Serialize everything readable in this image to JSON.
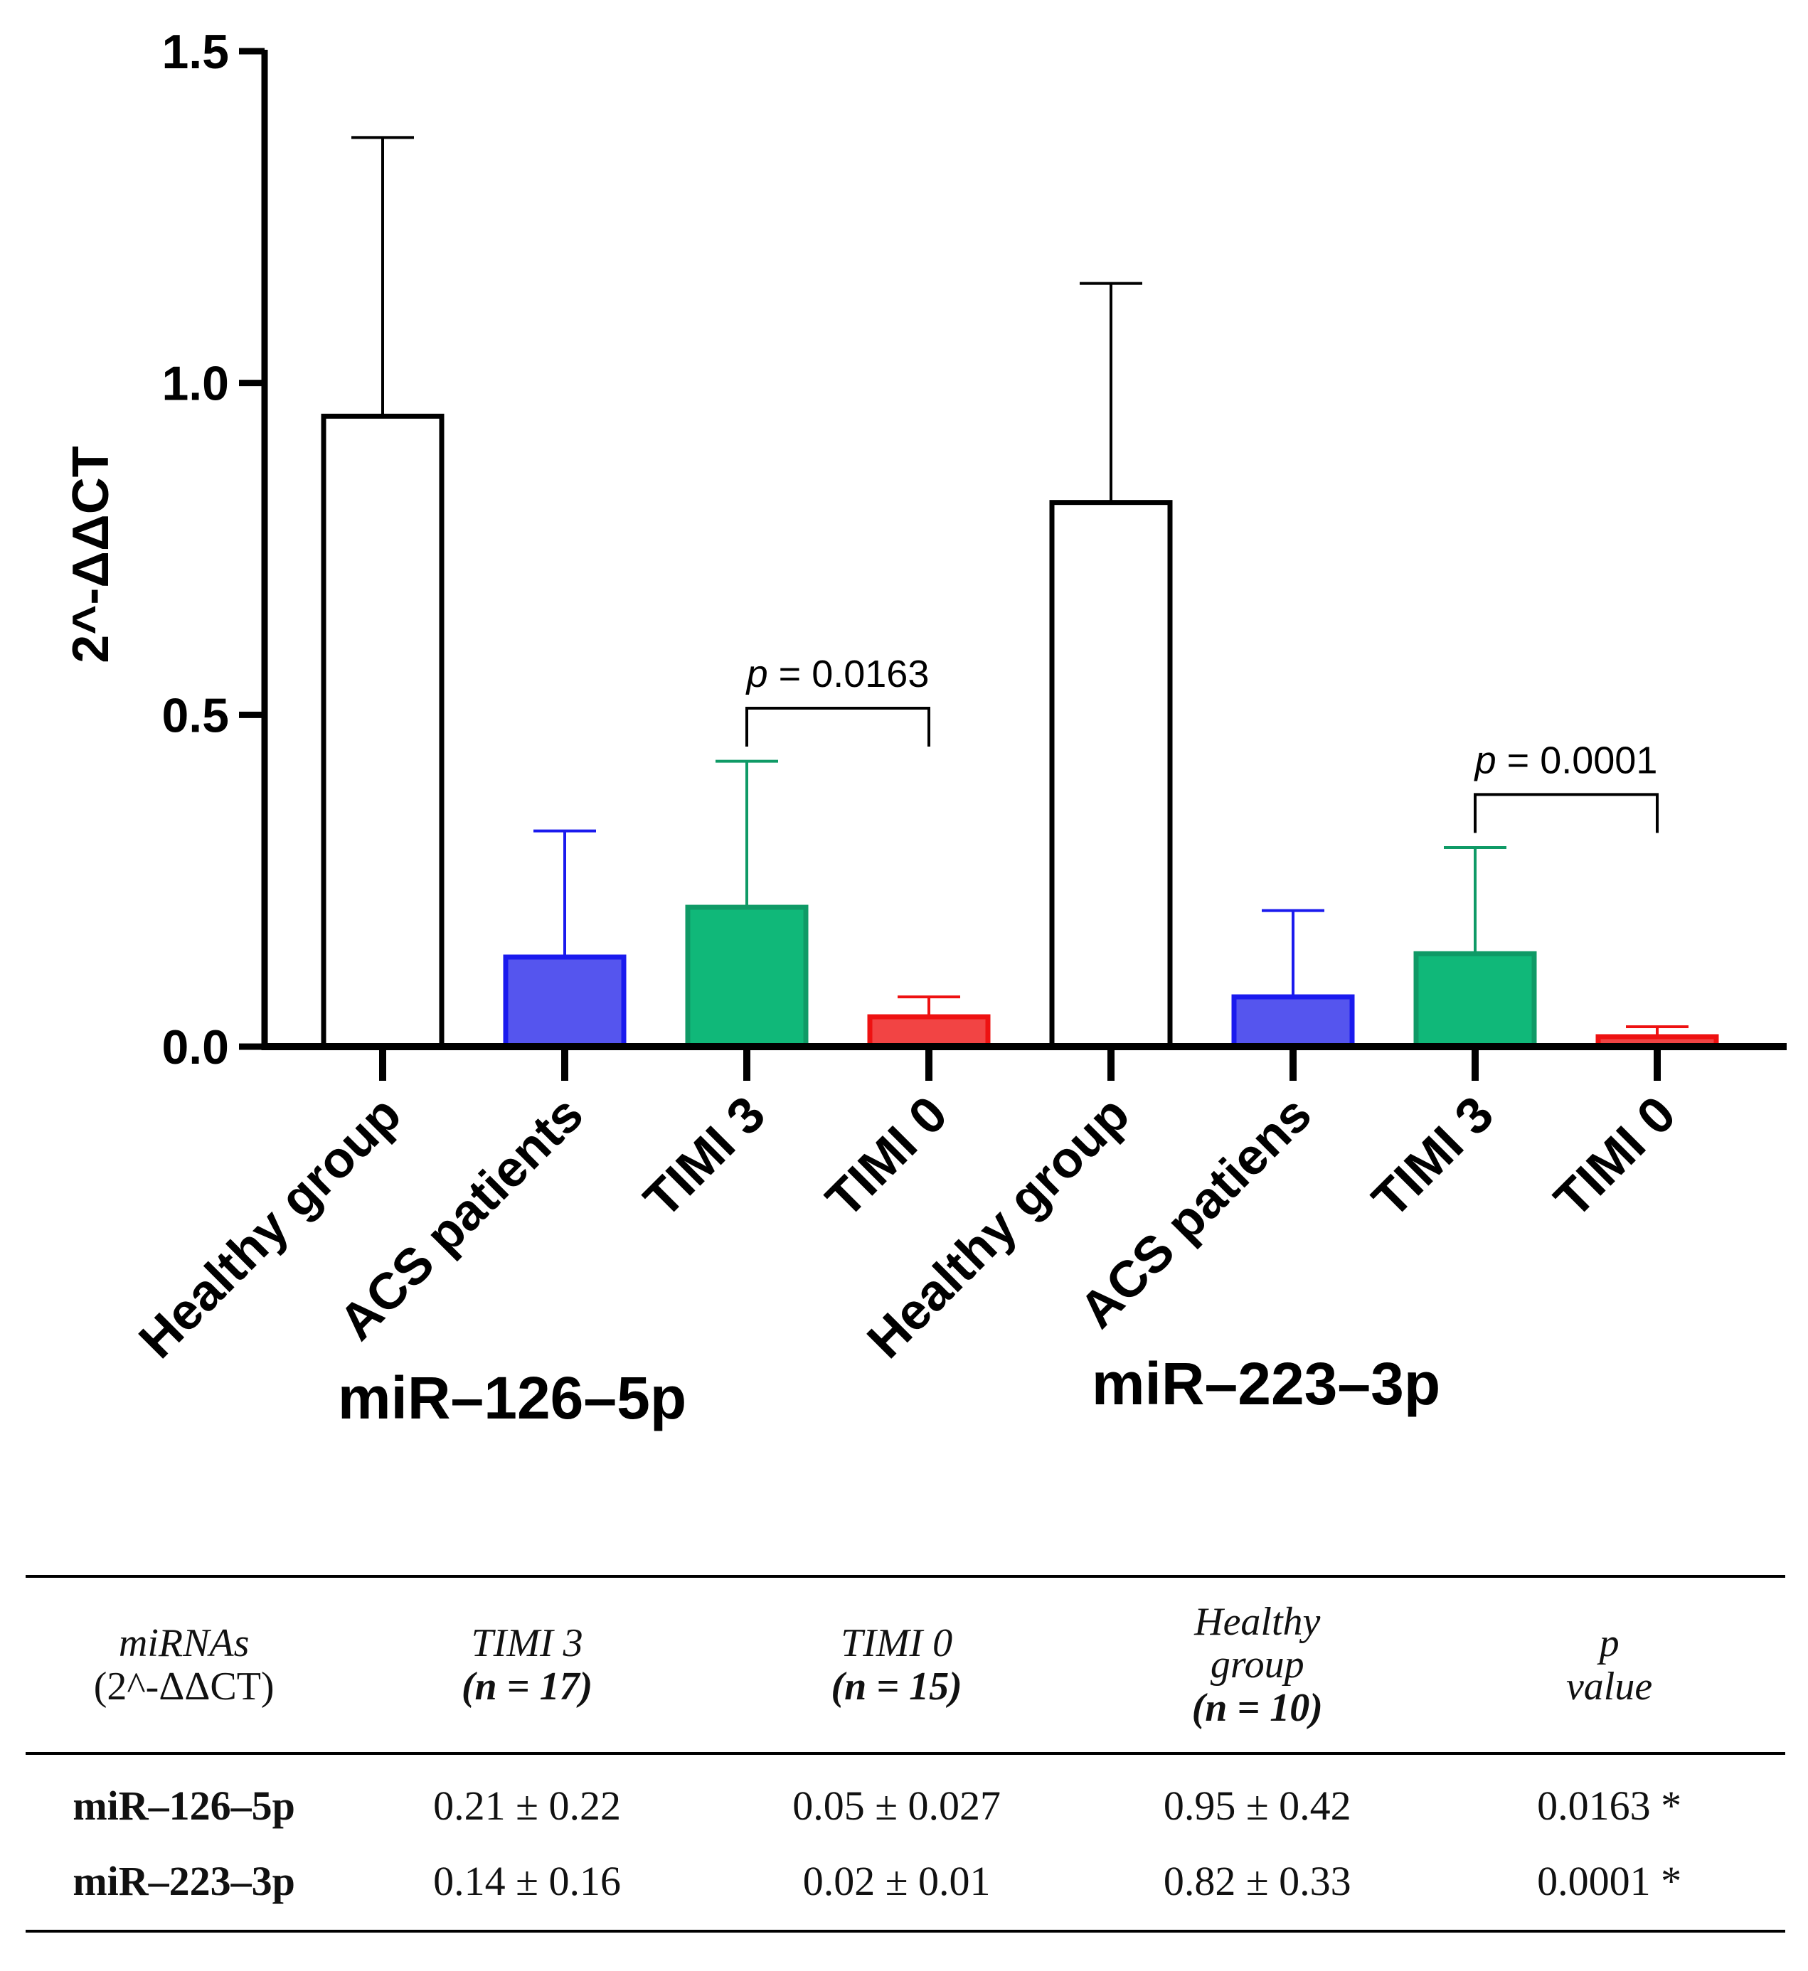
{
  "chart_data": {
    "type": "bar",
    "ylabel": "2^-ΔΔCT",
    "ylim": [
      0,
      1.5
    ],
    "yticks": [
      "0.0",
      "0.5",
      "1.0",
      "1.5"
    ],
    "groups": [
      {
        "name": "miR–126–5p",
        "bars": [
          {
            "label": "Healthy group",
            "value": 0.95,
            "error": 0.42,
            "fill": "#ffffff",
            "stroke": "#000000"
          },
          {
            "label": "ACS patients",
            "value": 0.135,
            "error": 0.19,
            "fill": "#5555ee",
            "stroke": "#1a1aee"
          },
          {
            "label": "TIMI 3",
            "value": 0.21,
            "error": 0.22,
            "fill": "#10b879",
            "stroke": "#0f9a66"
          },
          {
            "label": "TIMI 0",
            "value": 0.045,
            "error": 0.03,
            "fill": "#f24444",
            "stroke": "#ee1111"
          }
        ],
        "significance": {
          "p_prefix": "p",
          "text": " = 0.0163",
          "from_bar": 2,
          "to_bar": 3,
          "y": 0.51
        }
      },
      {
        "name": "miR–223–3p",
        "bars": [
          {
            "label": "Healthy group",
            "value": 0.82,
            "error": 0.33,
            "fill": "#ffffff",
            "stroke": "#000000"
          },
          {
            "label": "ACS patiens",
            "value": 0.075,
            "error": 0.13,
            "fill": "#5555ee",
            "stroke": "#1a1aee"
          },
          {
            "label": "TIMI 3",
            "value": 0.14,
            "error": 0.16,
            "fill": "#10b879",
            "stroke": "#0f9a66"
          },
          {
            "label": "TIMI 0",
            "value": 0.015,
            "error": 0.015,
            "fill": "#f24444",
            "stroke": "#ee1111"
          }
        ],
        "significance": {
          "p_prefix": "p",
          "text": " = 0.0001",
          "from_bar": 2,
          "to_bar": 3,
          "y": 0.38
        }
      }
    ]
  },
  "table": {
    "headers": {
      "mirnas": "miRNAs",
      "mirnas_sub": "(2^-ΔΔCT)",
      "timi3": "TIMI 3",
      "timi3_n": "(n = 17)",
      "timi0": "TIMI 0",
      "timi0_n": "(n = 15)",
      "healthy_1": "Healthy",
      "healthy_2": "group",
      "healthy_n": "(n = 10)",
      "p_1": "p",
      "p_2": "value"
    },
    "rows": [
      {
        "name": "miR–126–5p",
        "timi3": "0.21 ± 0.22",
        "timi0": "0.05 ± 0.027",
        "healthy": "0.95 ± 0.42",
        "p": "0.0163 *"
      },
      {
        "name": "miR–223–3p",
        "timi3": "0.14 ± 0.16",
        "timi0": "0.02 ± 0.01",
        "healthy": "0.82 ± 0.33",
        "p": "0.0001 *"
      }
    ]
  }
}
